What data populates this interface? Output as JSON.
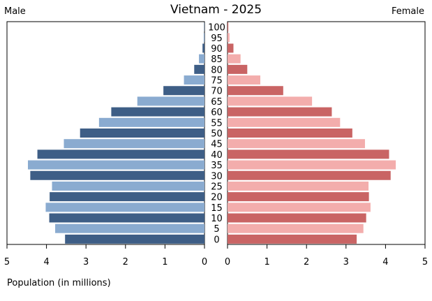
{
  "chart_data": {
    "type": "bar",
    "title": "Vietnam - 2025",
    "left_label": "Male",
    "right_label": "Female",
    "xlabel": "Population (in millions)",
    "xlim": [
      0,
      5
    ],
    "x_ticks": [
      "5",
      "4",
      "3",
      "2",
      "1",
      "0",
      "0",
      "1",
      "2",
      "3",
      "4",
      "5"
    ],
    "categories": [
      "0",
      "5",
      "10",
      "15",
      "20",
      "25",
      "30",
      "35",
      "40",
      "45",
      "50",
      "55",
      "60",
      "65",
      "70",
      "75",
      "80",
      "85",
      "90",
      "95",
      "100"
    ],
    "series": [
      {
        "name": "Male",
        "values": [
          3.53,
          3.78,
          3.93,
          4.02,
          3.92,
          3.86,
          4.41,
          4.47,
          4.23,
          3.56,
          3.15,
          2.67,
          2.36,
          1.7,
          1.04,
          0.52,
          0.26,
          0.14,
          0.05,
          0.02,
          0.01
        ],
        "colors": [
          "#3e5e86",
          "#8aabd0"
        ]
      },
      {
        "name": "Female",
        "values": [
          3.27,
          3.44,
          3.51,
          3.62,
          3.58,
          3.57,
          4.13,
          4.26,
          4.09,
          3.48,
          3.16,
          2.85,
          2.64,
          2.14,
          1.41,
          0.83,
          0.5,
          0.33,
          0.15,
          0.05,
          0.02
        ],
        "colors": [
          "#c96464",
          "#f3adac"
        ]
      }
    ]
  }
}
